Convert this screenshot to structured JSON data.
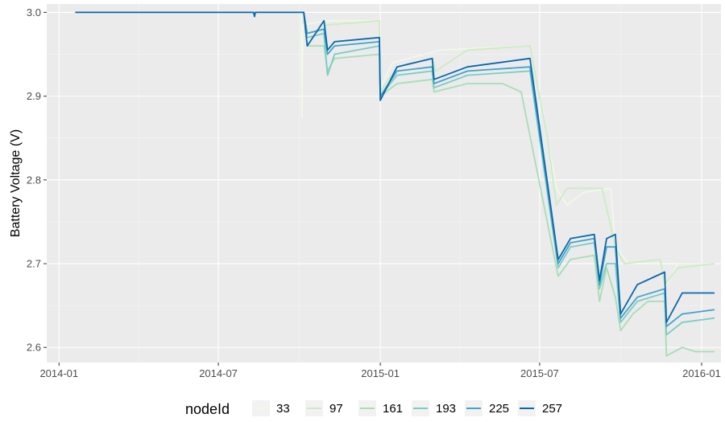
{
  "chart_data": {
    "type": "line",
    "xlabel": "",
    "ylabel": "Battery Voltage (V)",
    "xlim": [
      "2013-12-18",
      "2016-01-23"
    ],
    "ylim": [
      2.582,
      3.01
    ],
    "x_ticks": [
      "2014-01",
      "2014-07",
      "2015-01",
      "2015-07",
      "2016-01"
    ],
    "x_tick_dates": [
      "2014-01-01",
      "2014-07-01",
      "2015-01-01",
      "2015-07-01",
      "2016-01-01"
    ],
    "y_ticks": [
      2.6,
      2.7,
      2.8,
      2.9,
      3.0
    ],
    "y_tick_labels": [
      "2.6",
      "2.7",
      "2.8",
      "2.9",
      "3.0"
    ],
    "grid": true,
    "legend": {
      "title": "nodeId",
      "position": "bottom"
    },
    "series": [
      {
        "name": "33",
        "color": "#f0f9e8",
        "points": [
          [
            "2014-10-03",
            3.0
          ],
          [
            "2014-10-04",
            2.875
          ],
          [
            "2014-10-05",
            2.985
          ],
          [
            "2014-11-01",
            2.99
          ],
          [
            "2014-12-31",
            2.99
          ],
          [
            "2015-01-01",
            2.91
          ],
          [
            "2015-01-15",
            2.94
          ],
          [
            "2015-03-10",
            2.955
          ],
          [
            "2015-06-20",
            2.96
          ],
          [
            "2015-07-05",
            2.88
          ],
          [
            "2015-07-20",
            2.79
          ],
          [
            "2015-08-01",
            2.77
          ],
          [
            "2015-08-20",
            2.785
          ],
          [
            "2015-09-20",
            2.79
          ],
          [
            "2015-09-25",
            2.72
          ],
          [
            "2015-10-10",
            2.7
          ],
          [
            "2015-11-15",
            2.705
          ],
          [
            "2015-11-20",
            2.67
          ],
          [
            "2015-12-05",
            2.7
          ],
          [
            "2016-01-15",
            2.7
          ]
        ]
      },
      {
        "name": "97",
        "color": "#ccebc5",
        "points": [
          [
            "2014-10-06",
            3.0
          ],
          [
            "2014-10-08",
            2.975
          ],
          [
            "2014-10-28",
            2.98
          ],
          [
            "2014-11-01",
            2.985
          ],
          [
            "2014-12-31",
            2.99
          ],
          [
            "2015-01-01",
            2.905
          ],
          [
            "2015-01-20",
            2.935
          ],
          [
            "2015-03-01",
            2.945
          ],
          [
            "2015-03-05",
            2.93
          ],
          [
            "2015-04-10",
            2.955
          ],
          [
            "2015-06-20",
            2.96
          ],
          [
            "2015-07-10",
            2.85
          ],
          [
            "2015-07-20",
            2.77
          ],
          [
            "2015-08-01",
            2.79
          ],
          [
            "2015-09-10",
            2.79
          ],
          [
            "2015-09-25",
            2.72
          ],
          [
            "2015-10-05",
            2.7
          ],
          [
            "2015-11-15",
            2.705
          ],
          [
            "2015-11-20",
            2.675
          ],
          [
            "2015-12-05",
            2.695
          ],
          [
            "2016-01-15",
            2.7
          ]
        ]
      },
      {
        "name": "161",
        "color": "#a8ddb5",
        "points": [
          [
            "2014-10-06",
            3.0
          ],
          [
            "2014-10-10",
            2.96
          ],
          [
            "2014-10-29",
            2.96
          ],
          [
            "2014-11-02",
            2.93
          ],
          [
            "2014-11-10",
            2.945
          ],
          [
            "2014-12-31",
            2.95
          ],
          [
            "2015-01-01",
            2.9
          ],
          [
            "2015-01-20",
            2.915
          ],
          [
            "2015-03-01",
            2.92
          ],
          [
            "2015-03-03",
            2.905
          ],
          [
            "2015-04-10",
            2.915
          ],
          [
            "2015-05-20",
            2.915
          ],
          [
            "2015-06-10",
            2.905
          ],
          [
            "2015-07-22",
            2.685
          ],
          [
            "2015-08-05",
            2.705
          ],
          [
            "2015-09-01",
            2.71
          ],
          [
            "2015-09-07",
            2.655
          ],
          [
            "2015-09-15",
            2.695
          ],
          [
            "2015-09-25",
            2.66
          ],
          [
            "2015-10-01",
            2.62
          ],
          [
            "2015-10-15",
            2.64
          ],
          [
            "2015-11-01",
            2.655
          ],
          [
            "2015-11-20",
            2.655
          ],
          [
            "2015-11-22",
            2.59
          ],
          [
            "2015-12-10",
            2.6
          ],
          [
            "2015-12-25",
            2.595
          ],
          [
            "2016-01-15",
            2.595
          ]
        ]
      },
      {
        "name": "193",
        "color": "#7bccc4",
        "points": [
          [
            "2014-10-06",
            3.0
          ],
          [
            "2014-10-10",
            2.97
          ],
          [
            "2014-10-29",
            2.975
          ],
          [
            "2014-11-02",
            2.925
          ],
          [
            "2014-11-10",
            2.95
          ],
          [
            "2014-12-31",
            2.96
          ],
          [
            "2015-01-01",
            2.9
          ],
          [
            "2015-01-20",
            2.925
          ],
          [
            "2015-03-01",
            2.93
          ],
          [
            "2015-03-03",
            2.91
          ],
          [
            "2015-04-10",
            2.925
          ],
          [
            "2015-06-20",
            2.93
          ],
          [
            "2015-07-22",
            2.695
          ],
          [
            "2015-08-05",
            2.72
          ],
          [
            "2015-09-01",
            2.725
          ],
          [
            "2015-09-07",
            2.67
          ],
          [
            "2015-09-15",
            2.7
          ],
          [
            "2015-09-25",
            2.7
          ],
          [
            "2015-10-01",
            2.63
          ],
          [
            "2015-10-20",
            2.655
          ],
          [
            "2015-11-20",
            2.665
          ],
          [
            "2015-11-22",
            2.615
          ],
          [
            "2015-12-10",
            2.63
          ],
          [
            "2016-01-15",
            2.635
          ]
        ]
      },
      {
        "name": "225",
        "color": "#43a2ca",
        "points": [
          [
            "2014-10-06",
            3.0
          ],
          [
            "2014-10-10",
            2.975
          ],
          [
            "2014-10-29",
            2.98
          ],
          [
            "2014-11-02",
            2.95
          ],
          [
            "2014-11-10",
            2.96
          ],
          [
            "2014-12-31",
            2.965
          ],
          [
            "2015-01-01",
            2.9
          ],
          [
            "2015-01-20",
            2.93
          ],
          [
            "2015-03-01",
            2.935
          ],
          [
            "2015-03-03",
            2.915
          ],
          [
            "2015-04-10",
            2.93
          ],
          [
            "2015-06-20",
            2.935
          ],
          [
            "2015-07-22",
            2.7
          ],
          [
            "2015-08-05",
            2.725
          ],
          [
            "2015-09-01",
            2.73
          ],
          [
            "2015-09-07",
            2.675
          ],
          [
            "2015-09-15",
            2.72
          ],
          [
            "2015-09-25",
            2.72
          ],
          [
            "2015-10-01",
            2.635
          ],
          [
            "2015-10-20",
            2.66
          ],
          [
            "2015-11-20",
            2.67
          ],
          [
            "2015-11-22",
            2.625
          ],
          [
            "2015-12-10",
            2.64
          ],
          [
            "2016-01-15",
            2.645
          ]
        ]
      },
      {
        "name": "257",
        "color": "#0868ac",
        "points": [
          [
            "2014-01-20",
            3.0
          ],
          [
            "2014-08-10",
            3.0
          ],
          [
            "2014-08-11",
            2.995
          ],
          [
            "2014-08-12",
            3.0
          ],
          [
            "2014-10-06",
            3.0
          ],
          [
            "2014-10-10",
            2.96
          ],
          [
            "2014-10-29",
            2.99
          ],
          [
            "2014-11-02",
            2.955
          ],
          [
            "2014-11-10",
            2.965
          ],
          [
            "2014-12-31",
            2.97
          ],
          [
            "2015-01-01",
            2.895
          ],
          [
            "2015-01-20",
            2.935
          ],
          [
            "2015-03-01",
            2.945
          ],
          [
            "2015-03-03",
            2.92
          ],
          [
            "2015-04-10",
            2.935
          ],
          [
            "2015-06-20",
            2.945
          ],
          [
            "2015-07-22",
            2.705
          ],
          [
            "2015-08-05",
            2.73
          ],
          [
            "2015-09-01",
            2.735
          ],
          [
            "2015-09-07",
            2.68
          ],
          [
            "2015-09-15",
            2.73
          ],
          [
            "2015-09-25",
            2.735
          ],
          [
            "2015-10-01",
            2.64
          ],
          [
            "2015-10-20",
            2.675
          ],
          [
            "2015-11-20",
            2.69
          ],
          [
            "2015-11-22",
            2.63
          ],
          [
            "2015-12-10",
            2.665
          ],
          [
            "2016-01-15",
            2.665
          ]
        ]
      }
    ]
  }
}
